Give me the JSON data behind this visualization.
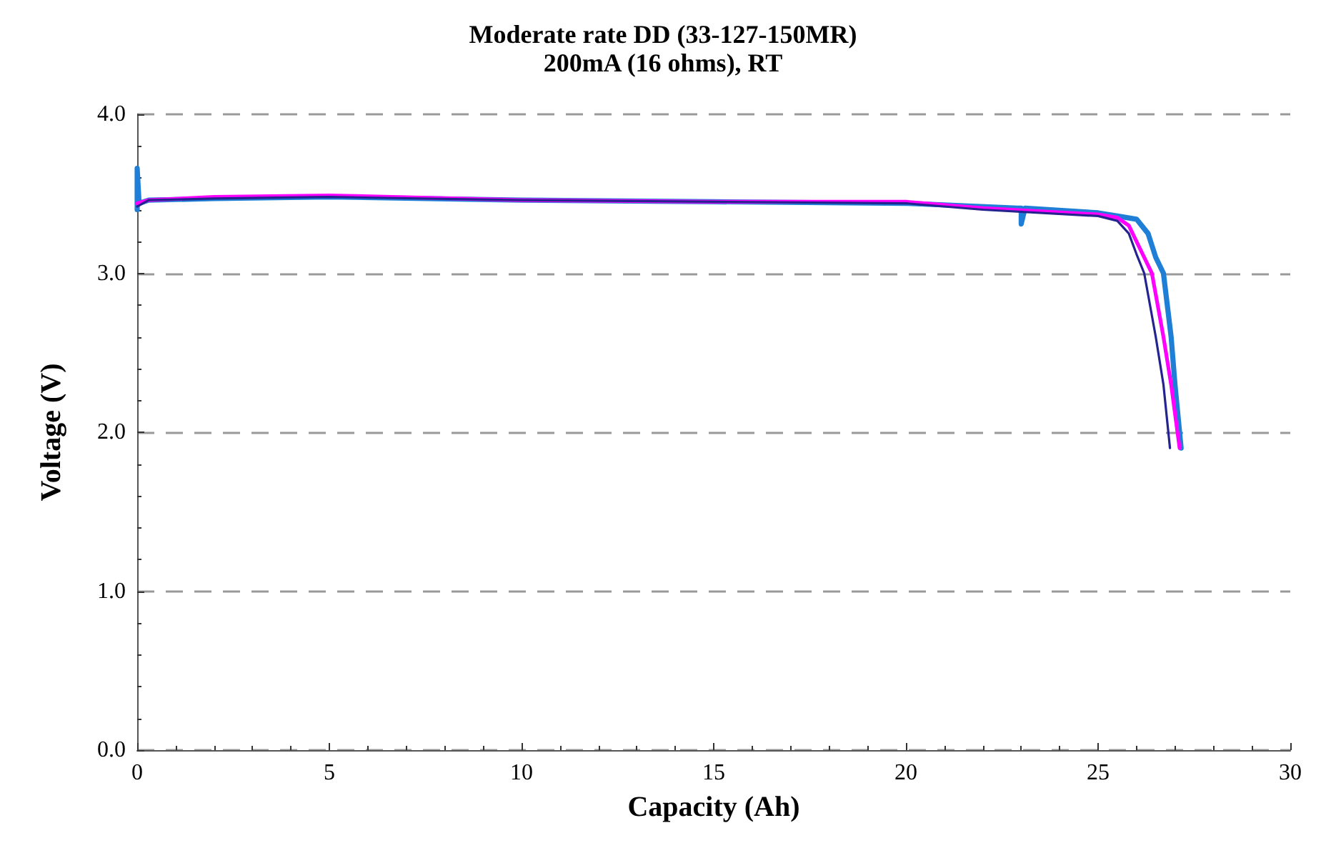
{
  "chart_data": {
    "type": "line",
    "title": "Moderate rate DD (33-127-150MR)",
    "subtitle": "200mA (16 ohms), RT",
    "xlabel": "Capacity (Ah)",
    "ylabel": "Voltage (V)",
    "xlim": [
      0,
      30
    ],
    "ylim": [
      0,
      4
    ],
    "xticks": [
      0,
      5,
      10,
      15,
      20,
      25,
      30
    ],
    "yticks": [
      {
        "value": 0,
        "label": "0.0"
      },
      {
        "value": 1,
        "label": "1.0"
      },
      {
        "value": 2,
        "label": "2.0"
      },
      {
        "value": 3,
        "label": "3.0"
      },
      {
        "value": 4,
        "label": "4.0"
      }
    ],
    "grid": "y",
    "marker": "none",
    "line_style": "solid",
    "series": [
      {
        "color": "#1f7fd6",
        "x": [
          0,
          0,
          0.05,
          0.3,
          2,
          5,
          10,
          15,
          20,
          22.9,
          23,
          23,
          23.1,
          25,
          25.5,
          26,
          26.3,
          26.5,
          26.7,
          26.9,
          27,
          27.16
        ],
        "values": [
          3.4,
          3.66,
          3.44,
          3.46,
          3.47,
          3.48,
          3.46,
          3.45,
          3.44,
          3.41,
          3.41,
          3.31,
          3.41,
          3.38,
          3.36,
          3.34,
          3.25,
          3.1,
          3.0,
          2.6,
          2.3,
          1.9
        ]
      },
      {
        "color": "#ff00ff",
        "x": [
          0,
          0.3,
          2,
          5,
          10,
          15,
          20,
          22,
          25,
          25.5,
          25.8,
          26.1,
          26.4,
          26.7,
          26.9,
          27.12
        ],
        "values": [
          3.44,
          3.46,
          3.48,
          3.49,
          3.46,
          3.45,
          3.45,
          3.41,
          3.37,
          3.35,
          3.3,
          3.15,
          3.0,
          2.6,
          2.3,
          1.9
        ]
      },
      {
        "color": "#25238f",
        "x": [
          0,
          0.3,
          2,
          5,
          10,
          15,
          20,
          22,
          25,
          25.5,
          25.8,
          26.0,
          26.2,
          26.5,
          26.7,
          26.87
        ],
        "values": [
          3.42,
          3.46,
          3.47,
          3.48,
          3.46,
          3.45,
          3.44,
          3.4,
          3.36,
          3.33,
          3.25,
          3.12,
          3.0,
          2.6,
          2.3,
          1.9
        ]
      }
    ]
  }
}
